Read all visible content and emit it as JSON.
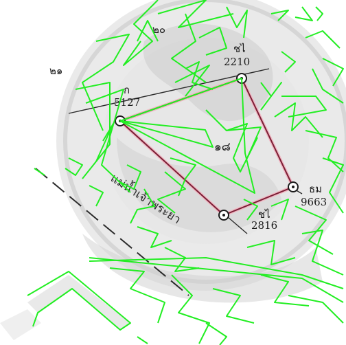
{
  "map": {
    "colors": {
      "background": "#ffffff",
      "seal": "#d9d9d9",
      "seal_edge": "#c8c8c8",
      "boundary": "#7a1f35",
      "boundary_highlight": "#f0b7c3",
      "line_work": "#2b2b2b",
      "overlay": "#22ee22",
      "text": "#1a1a1a"
    },
    "labels": {
      "neighbor_top": "๒๐",
      "neighbor_left": "๒๑",
      "parcel_number": "๑๘",
      "river": "แม่น้ำเจ้าพระยา"
    },
    "markers": [
      {
        "id": "marker-top",
        "code": "ชไ",
        "number": "2210"
      },
      {
        "id": "marker-left",
        "code": "ก",
        "number": "5127"
      },
      {
        "id": "marker-right",
        "code": "ธม",
        "number": "9663"
      },
      {
        "id": "marker-bottom",
        "code": "ชไ",
        "number": "2816"
      }
    ],
    "icons": {
      "seal": "royal-emblem-watermark",
      "overlay": "green-scribble-overlay"
    }
  }
}
